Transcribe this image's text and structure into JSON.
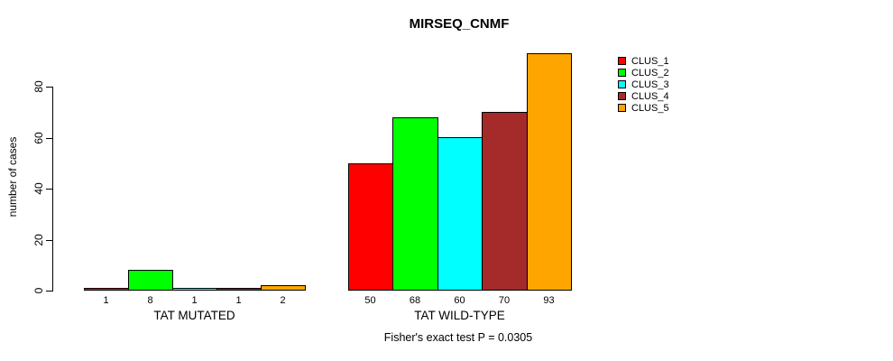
{
  "title": "MIRSEQ_CNMF",
  "ylabel": "number of cases",
  "footer": "Fisher's exact test P = 0.0305",
  "legend": {
    "items": [
      {
        "label": "CLUS_1",
        "color": "#FF0000"
      },
      {
        "label": "CLUS_2",
        "color": "#00FF00"
      },
      {
        "label": "CLUS_3",
        "color": "#00FFFF"
      },
      {
        "label": "CLUS_4",
        "color": "#A52A2A"
      },
      {
        "label": "CLUS_5",
        "color": "#FFA500"
      }
    ]
  },
  "chart_data": {
    "type": "bar",
    "title": "MIRSEQ_CNMF",
    "xlabel": "",
    "ylabel": "number of cases",
    "ylim": [
      0,
      93
    ],
    "yticks": [
      0,
      20,
      40,
      60,
      80
    ],
    "grid": false,
    "legend_position": "top-right",
    "series_names": [
      "CLUS_1",
      "CLUS_2",
      "CLUS_3",
      "CLUS_4",
      "CLUS_5"
    ],
    "series_colors": [
      "#FF0000",
      "#00FF00",
      "#00FFFF",
      "#A52A2A",
      "#FFA500"
    ],
    "groups": [
      {
        "label": "TAT MUTATED",
        "values": [
          1,
          8,
          1,
          1,
          2
        ]
      },
      {
        "label": "TAT WILD-TYPE",
        "values": [
          50,
          68,
          60,
          70,
          93
        ]
      }
    ],
    "annotations": [
      "Fisher's exact test P = 0.0305"
    ]
  }
}
